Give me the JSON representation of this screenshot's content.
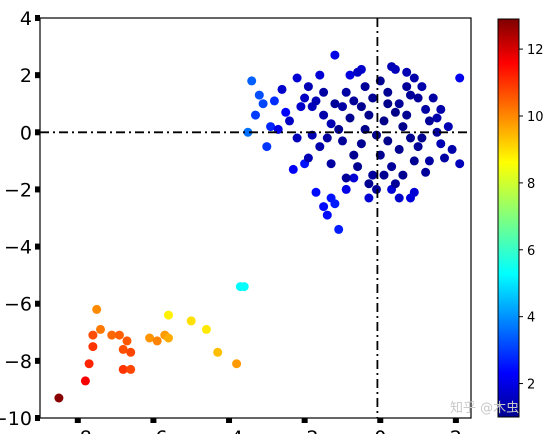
{
  "chart_data": {
    "type": "scatter",
    "title": "",
    "xlabel": "",
    "ylabel": "",
    "xlim": [
      -9,
      2.4
    ],
    "ylim": [
      -10,
      4
    ],
    "x_ticks": [
      -8,
      -6,
      -4,
      -2,
      0,
      2
    ],
    "x_tick_labels": [
      "−8",
      "−6",
      "−4",
      "−2",
      "0",
      "2"
    ],
    "y_ticks": [
      -10,
      -8,
      -6,
      -4,
      -2,
      0,
      2,
      4
    ],
    "y_tick_labels": [
      "−10",
      "−8",
      "−6",
      "−4",
      "−2",
      "0",
      "2",
      "4"
    ],
    "reference_lines": {
      "x": 0,
      "y": 0,
      "style": "dash-dot",
      "color": "#000000"
    },
    "grid": false,
    "colorbar": {
      "colormap": "jet",
      "range": [
        1,
        12.9
      ],
      "ticks": [
        2,
        4,
        6,
        8,
        10,
        12
      ],
      "tick_labels": [
        "2",
        "4",
        "6",
        "8",
        "10",
        "12"
      ]
    },
    "points": [
      {
        "x": -8.5,
        "y": -9.3,
        "c": 12.8
      },
      {
        "x": -7.8,
        "y": -8.7,
        "c": 11.5
      },
      {
        "x": -7.7,
        "y": -8.1,
        "c": 11.0
      },
      {
        "x": -7.6,
        "y": -7.5,
        "c": 10.8
      },
      {
        "x": -7.6,
        "y": -7.1,
        "c": 10.5
      },
      {
        "x": -7.4,
        "y": -6.9,
        "c": 10.0
      },
      {
        "x": -7.5,
        "y": -6.2,
        "c": 9.8
      },
      {
        "x": -7.1,
        "y": -7.1,
        "c": 10.2
      },
      {
        "x": -6.9,
        "y": -7.1,
        "c": 10.3
      },
      {
        "x": -6.7,
        "y": -7.3,
        "c": 10.4
      },
      {
        "x": -6.8,
        "y": -7.6,
        "c": 10.5
      },
      {
        "x": -6.6,
        "y": -7.7,
        "c": 10.6
      },
      {
        "x": -6.8,
        "y": -8.3,
        "c": 10.8
      },
      {
        "x": -6.6,
        "y": -8.3,
        "c": 10.6
      },
      {
        "x": -6.1,
        "y": -7.2,
        "c": 9.7
      },
      {
        "x": -5.9,
        "y": -7.3,
        "c": 9.9
      },
      {
        "x": -5.7,
        "y": -7.1,
        "c": 9.6
      },
      {
        "x": -5.6,
        "y": -7.2,
        "c": 9.4
      },
      {
        "x": -5.6,
        "y": -6.4,
        "c": 8.6
      },
      {
        "x": -5.0,
        "y": -6.6,
        "c": 8.8
      },
      {
        "x": -4.6,
        "y": -6.9,
        "c": 8.7
      },
      {
        "x": -4.3,
        "y": -7.7,
        "c": 9.2
      },
      {
        "x": -3.8,
        "y": -8.1,
        "c": 9.6
      },
      {
        "x": -3.7,
        "y": -5.4,
        "c": 5.4
      },
      {
        "x": -3.6,
        "y": -5.4,
        "c": 5.5
      },
      {
        "x": -3.5,
        "y": 0.0,
        "c": 3.8
      },
      {
        "x": -3.4,
        "y": 1.8,
        "c": 3.6
      },
      {
        "x": -3.2,
        "y": 1.3,
        "c": 3.4
      },
      {
        "x": -3.1,
        "y": 1.0,
        "c": 3.3
      },
      {
        "x": -3.3,
        "y": 0.6,
        "c": 3.2
      },
      {
        "x": -3.0,
        "y": -0.5,
        "c": 3.1
      },
      {
        "x": -2.8,
        "y": 1.1,
        "c": 3.0
      },
      {
        "x": -2.9,
        "y": 0.2,
        "c": 2.9
      },
      {
        "x": -2.5,
        "y": 0.7,
        "c": 2.5
      },
      {
        "x": -2.3,
        "y": -1.3,
        "c": 2.4
      },
      {
        "x": -2.0,
        "y": -1.1,
        "c": 2.7
      },
      {
        "x": -1.7,
        "y": -2.1,
        "c": 2.6
      },
      {
        "x": -1.5,
        "y": -2.6,
        "c": 2.6
      },
      {
        "x": -1.4,
        "y": -2.9,
        "c": 2.6
      },
      {
        "x": -1.3,
        "y": -2.3,
        "c": 2.7
      },
      {
        "x": -1.2,
        "y": -2.5,
        "c": 2.8
      },
      {
        "x": -1.1,
        "y": -3.4,
        "c": 2.8
      },
      {
        "x": -0.9,
        "y": -2.0,
        "c": 2.2
      },
      {
        "x": -0.7,
        "y": -1.6,
        "c": 2.0
      },
      {
        "x": -0.3,
        "y": -2.3,
        "c": 2.0
      },
      {
        "x": 0.3,
        "y": -2.0,
        "c": 2.0
      },
      {
        "x": 0.5,
        "y": -2.3,
        "c": 1.9
      },
      {
        "x": 0.8,
        "y": -2.3,
        "c": 2.1
      },
      {
        "x": 0.9,
        "y": -2.1,
        "c": 2.0
      },
      {
        "x": -1.2,
        "y": 2.7,
        "c": 2.2
      },
      {
        "x": -1.6,
        "y": 2.0,
        "c": 2.0
      },
      {
        "x": -0.8,
        "y": 2.0,
        "c": 2.1
      },
      {
        "x": -0.5,
        "y": 2.2,
        "c": 1.9
      },
      {
        "x": -0.6,
        "y": 2.1,
        "c": 1.8
      },
      {
        "x": 0.3,
        "y": 2.3,
        "c": 1.6
      },
      {
        "x": 0.7,
        "y": 2.1,
        "c": 1.6
      },
      {
        "x": 0.9,
        "y": 1.9,
        "c": 1.5
      },
      {
        "x": 2.1,
        "y": 1.9,
        "c": 2.3
      },
      {
        "x": -2.0,
        "y": 1.2,
        "c": 1.8
      },
      {
        "x": -1.8,
        "y": 0.9,
        "c": 1.7
      },
      {
        "x": -1.5,
        "y": 0.6,
        "c": 1.5
      },
      {
        "x": -1.3,
        "y": 0.3,
        "c": 1.6
      },
      {
        "x": -1.0,
        "y": 0.9,
        "c": 1.4
      },
      {
        "x": -0.9,
        "y": 1.4,
        "c": 1.4
      },
      {
        "x": -0.7,
        "y": 1.1,
        "c": 1.3
      },
      {
        "x": -0.4,
        "y": 1.6,
        "c": 1.3
      },
      {
        "x": -0.2,
        "y": 1.2,
        "c": 1.2
      },
      {
        "x": 0.0,
        "y": 1.8,
        "c": 1.2
      },
      {
        "x": 0.2,
        "y": 1.4,
        "c": 1.2
      },
      {
        "x": 0.5,
        "y": 1.0,
        "c": 1.3
      },
      {
        "x": 0.7,
        "y": 1.6,
        "c": 1.3
      },
      {
        "x": 1.0,
        "y": 1.2,
        "c": 1.3
      },
      {
        "x": 1.2,
        "y": 0.8,
        "c": 1.4
      },
      {
        "x": 1.5,
        "y": 0.5,
        "c": 1.5
      },
      {
        "x": 1.8,
        "y": 0.2,
        "c": 1.6
      },
      {
        "x": 1.6,
        "y": -0.4,
        "c": 1.6
      },
      {
        "x": 1.9,
        "y": -0.6,
        "c": 1.5
      },
      {
        "x": 2.1,
        "y": -1.1,
        "c": 1.7
      },
      {
        "x": 1.3,
        "y": -1.0,
        "c": 1.4
      },
      {
        "x": 1.0,
        "y": -0.5,
        "c": 1.3
      },
      {
        "x": 0.8,
        "y": -0.2,
        "c": 1.2
      },
      {
        "x": 0.5,
        "y": -0.6,
        "c": 1.2
      },
      {
        "x": 0.3,
        "y": -1.2,
        "c": 1.3
      },
      {
        "x": 0.0,
        "y": -0.8,
        "c": 1.2
      },
      {
        "x": -0.2,
        "y": -1.5,
        "c": 1.3
      },
      {
        "x": -0.5,
        "y": -0.4,
        "c": 1.2
      },
      {
        "x": -0.7,
        "y": -0.8,
        "c": 1.2
      },
      {
        "x": -1.0,
        "y": -0.3,
        "c": 1.3
      },
      {
        "x": -1.3,
        "y": -1.1,
        "c": 1.4
      },
      {
        "x": -1.6,
        "y": -0.5,
        "c": 1.5
      },
      {
        "x": -1.9,
        "y": -0.9,
        "c": 1.6
      },
      {
        "x": -2.2,
        "y": -0.2,
        "c": 1.7
      },
      {
        "x": -2.4,
        "y": 0.4,
        "c": 1.8
      },
      {
        "x": -2.6,
        "y": 1.5,
        "c": 1.9
      },
      {
        "x": -2.2,
        "y": 1.9,
        "c": 2.0
      },
      {
        "x": -1.9,
        "y": 1.6,
        "c": 1.6
      },
      {
        "x": -1.5,
        "y": 1.4,
        "c": 1.4
      },
      {
        "x": -1.2,
        "y": 1.0,
        "c": 1.3
      },
      {
        "x": -0.8,
        "y": 0.5,
        "c": 1.2
      },
      {
        "x": -0.4,
        "y": 0.1,
        "c": 1.1
      },
      {
        "x": 0.1,
        "y": 0.4,
        "c": 1.1
      },
      {
        "x": 0.4,
        "y": 0.7,
        "c": 1.1
      },
      {
        "x": 0.6,
        "y": 0.2,
        "c": 1.1
      },
      {
        "x": 1.1,
        "y": -0.2,
        "c": 1.2
      },
      {
        "x": 1.4,
        "y": 1.2,
        "c": 1.4
      },
      {
        "x": 1.1,
        "y": 1.6,
        "c": 1.5
      },
      {
        "x": 0.4,
        "y": 2.2,
        "c": 1.7
      },
      {
        "x": 0.2,
        "y": -0.3,
        "c": 1.1
      },
      {
        "x": -0.1,
        "y": -0.1,
        "c": 1.1
      },
      {
        "x": -0.3,
        "y": 0.6,
        "c": 1.1
      },
      {
        "x": -0.6,
        "y": -1.2,
        "c": 1.2
      },
      {
        "x": -0.9,
        "y": -1.6,
        "c": 1.3
      },
      {
        "x": 0.6,
        "y": -1.5,
        "c": 1.2
      },
      {
        "x": 0.9,
        "y": -1.0,
        "c": 1.2
      },
      {
        "x": 1.2,
        "y": -1.4,
        "c": 1.3
      },
      {
        "x": 1.7,
        "y": -0.9,
        "c": 1.4
      },
      {
        "x": 1.5,
        "y": 0.0,
        "c": 1.3
      },
      {
        "x": 0.2,
        "y": 1.0,
        "c": 1.1
      },
      {
        "x": -1.1,
        "y": 0.1,
        "c": 1.2
      },
      {
        "x": -1.4,
        "y": -0.2,
        "c": 1.4
      },
      {
        "x": -0.3,
        "y": -1.8,
        "c": 1.2
      },
      {
        "x": 0.1,
        "y": -1.5,
        "c": 1.2
      },
      {
        "x": 0.7,
        "y": 0.6,
        "c": 1.2
      },
      {
        "x": 1.3,
        "y": 0.4,
        "c": 1.3
      },
      {
        "x": -2.1,
        "y": 0.9,
        "c": 1.9
      },
      {
        "x": -1.7,
        "y": 1.1,
        "c": 1.6
      },
      {
        "x": -0.5,
        "y": 0.9,
        "c": 1.2
      },
      {
        "x": 0.8,
        "y": 1.3,
        "c": 1.3
      },
      {
        "x": 1.6,
        "y": 0.8,
        "c": 1.5
      },
      {
        "x": -0.1,
        "y": -2.0,
        "c": 1.3
      },
      {
        "x": 0.4,
        "y": -1.8,
        "c": 1.3
      },
      {
        "x": -1.8,
        "y": -0.1,
        "c": 1.6
      },
      {
        "x": -2.7,
        "y": 0.1,
        "c": 2.2
      }
    ]
  },
  "watermark": "知乎 @木虫"
}
